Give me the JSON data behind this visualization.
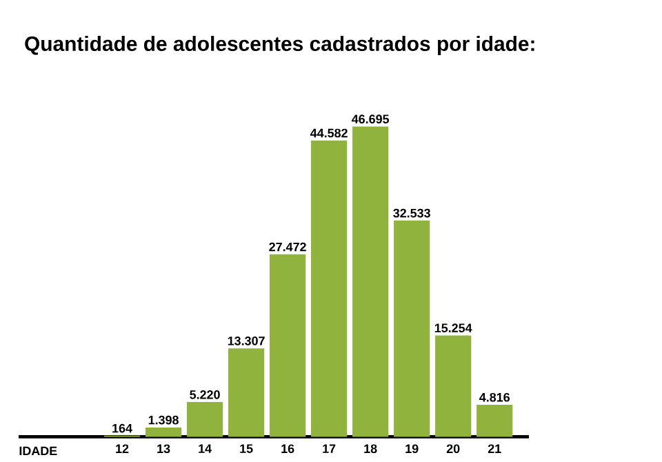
{
  "chart_data": {
    "type": "bar",
    "title": "Quantidade de adolescentes cadastrados por idade:",
    "xlabel": "IDADE",
    "categories": [
      "12",
      "13",
      "14",
      "15",
      "16",
      "17",
      "18",
      "19",
      "20",
      "21"
    ],
    "values": [
      164,
      1398,
      5220,
      13307,
      27472,
      44582,
      46695,
      32533,
      15254,
      4816
    ],
    "value_labels": [
      "164",
      "1.398",
      "5.220",
      "13.307",
      "27.472",
      "44.582",
      "46.695",
      "32.533",
      "15.254",
      "4.816"
    ],
    "color": "#8fb33c"
  }
}
